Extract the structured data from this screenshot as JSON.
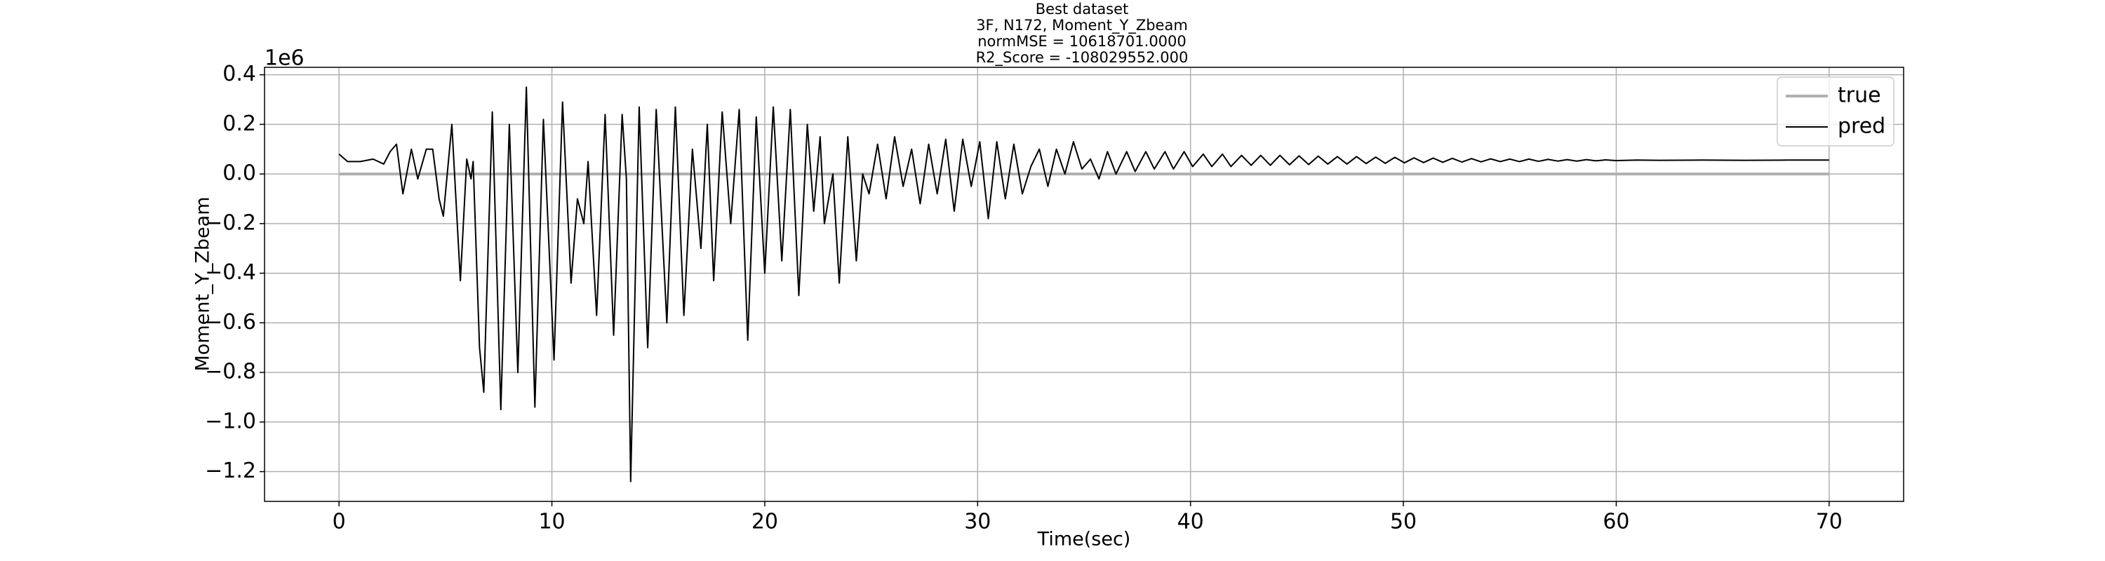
{
  "chart_data": {
    "type": "line",
    "title": "Best dataset",
    "subtitle_lines": [
      "3F, N172, Moment_Y_Zbeam",
      "normMSE = 10618701.0000",
      "R2_Score = -108029552.000"
    ],
    "xlabel": "Time(sec)",
    "ylabel": "Moment_Y_Zbeam",
    "y_offset_label": "1e6",
    "xlim": [
      -3.5,
      73.5
    ],
    "ylim": [
      -1.32,
      0.43
    ],
    "xticks": [
      0,
      10,
      20,
      30,
      40,
      50,
      60,
      70
    ],
    "yticks": [
      0.4,
      0.2,
      {
        "value": 0,
        "label": "0.0"
      },
      {
        "value": -0.2,
        "label": "−0.2"
      },
      {
        "value": -0.4,
        "label": "−0.4"
      },
      {
        "value": -0.6,
        "label": "−0.6"
      },
      {
        "value": -0.8,
        "label": "−0.8"
      },
      {
        "value": -1.0,
        "label": "−1.0"
      },
      {
        "value": -1.2,
        "label": "−1.2"
      }
    ],
    "grid": true,
    "legend": "upper right",
    "series": [
      {
        "name": "true",
        "color": "#b0b0b0",
        "x": [
          0,
          70
        ],
        "values": [
          0,
          0
        ]
      },
      {
        "name": "pred",
        "color": "#000000",
        "x": [
          0,
          0.4,
          1.0,
          1.6,
          2.1,
          2.4,
          2.7,
          3.0,
          3.4,
          3.7,
          4.1,
          4.4,
          4.7,
          4.9,
          5.3,
          5.7,
          6.0,
          6.2,
          6.3,
          6.6,
          6.8,
          7.2,
          7.6,
          8.0,
          8.4,
          8.8,
          9.2,
          9.6,
          10.1,
          10.5,
          10.9,
          11.2,
          11.5,
          11.7,
          12.1,
          12.5,
          12.9,
          13.3,
          13.5,
          13.7,
          14.1,
          14.5,
          14.9,
          15.4,
          15.8,
          16.2,
          16.6,
          17.0,
          17.3,
          17.6,
          18.0,
          18.4,
          18.8,
          19.2,
          19.6,
          20.0,
          20.4,
          20.8,
          21.2,
          21.6,
          22.0,
          22.3,
          22.6,
          22.8,
          23.2,
          23.5,
          23.9,
          24.3,
          24.6,
          24.9,
          25.3,
          25.7,
          26.1,
          26.5,
          26.9,
          27.3,
          27.7,
          28.1,
          28.5,
          28.9,
          29.3,
          29.7,
          30.1,
          30.5,
          30.9,
          31.3,
          31.7,
          32.1,
          32.5,
          32.9,
          33.3,
          33.7,
          34.1,
          34.5,
          34.9,
          35.3,
          35.7,
          36.1,
          36.5,
          37.0,
          37.4,
          37.9,
          38.3,
          38.8,
          39.2,
          39.7,
          40.1,
          40.6,
          41.0,
          41.5,
          41.9,
          42.4,
          42.85,
          43.3,
          43.75,
          44.2,
          44.65,
          45.1,
          45.55,
          46.0,
          46.45,
          46.9,
          47.35,
          47.8,
          48.25,
          48.7,
          49.15,
          49.6,
          50.05,
          50.5,
          50.95,
          51.4,
          51.85,
          52.3,
          52.75,
          53.2,
          53.65,
          54.1,
          54.55,
          55.0,
          55.45,
          55.9,
          56.35,
          56.8,
          57.25,
          57.7,
          58.15,
          58.6,
          59.05,
          59.5,
          60.0,
          61,
          62,
          64,
          66,
          68,
          70
        ],
        "values": [
          0.08,
          0.05,
          0.05,
          0.06,
          0.04,
          0.09,
          0.12,
          -0.08,
          0.1,
          -0.02,
          0.1,
          0.1,
          -0.1,
          -0.17,
          0.2,
          -0.43,
          0.06,
          -0.02,
          0.05,
          -0.7,
          -0.88,
          0.25,
          -0.95,
          0.2,
          -0.8,
          0.35,
          -0.94,
          0.22,
          -0.75,
          0.29,
          -0.44,
          -0.1,
          -0.2,
          0.05,
          -0.57,
          0.24,
          -0.65,
          0.24,
          -0.02,
          -1.24,
          0.27,
          -0.7,
          0.26,
          -0.6,
          0.27,
          -0.57,
          0.1,
          -0.3,
          0.2,
          -0.43,
          0.25,
          -0.2,
          0.26,
          -0.67,
          0.23,
          -0.4,
          0.27,
          -0.35,
          0.26,
          -0.49,
          0.2,
          -0.15,
          0.15,
          -0.2,
          0.0,
          -0.44,
          0.15,
          -0.35,
          0.0,
          -0.08,
          0.12,
          -0.1,
          0.15,
          -0.05,
          0.1,
          -0.12,
          0.12,
          -0.08,
          0.14,
          -0.15,
          0.14,
          -0.05,
          0.13,
          -0.18,
          0.13,
          -0.1,
          0.12,
          -0.08,
          0.03,
          0.1,
          -0.05,
          0.1,
          0.0,
          0.13,
          0.02,
          0.06,
          -0.02,
          0.09,
          0.0,
          0.09,
          0.01,
          0.09,
          0.02,
          0.09,
          0.02,
          0.09,
          0.03,
          0.08,
          0.03,
          0.08,
          0.03,
          0.075,
          0.035,
          0.075,
          0.035,
          0.075,
          0.037,
          0.073,
          0.038,
          0.072,
          0.04,
          0.07,
          0.04,
          0.07,
          0.042,
          0.068,
          0.043,
          0.067,
          0.045,
          0.065,
          0.046,
          0.064,
          0.047,
          0.063,
          0.048,
          0.062,
          0.049,
          0.061,
          0.05,
          0.06,
          0.05,
          0.06,
          0.051,
          0.059,
          0.052,
          0.058,
          0.052,
          0.058,
          0.053,
          0.057,
          0.054,
          0.056,
          0.055,
          0.056,
          0.055,
          0.056,
          0.056
        ]
      }
    ]
  }
}
